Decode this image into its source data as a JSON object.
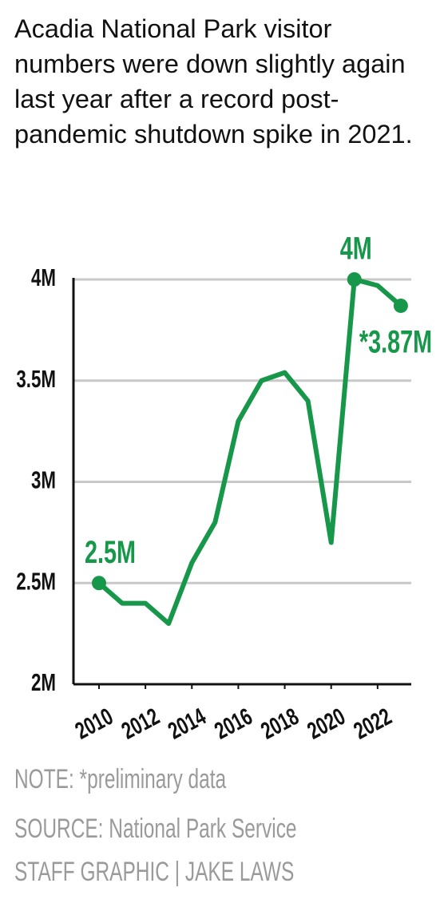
{
  "chart_data": {
    "type": "line",
    "title": "Acadia National Park visitor numbers were down slightly again last year after a record post-pandemic shutdown spike in 2021.",
    "x": [
      2010,
      2011,
      2012,
      2013,
      2014,
      2015,
      2016,
      2017,
      2018,
      2019,
      2020,
      2021,
      2022,
      2023
    ],
    "series": [
      {
        "name": "Visitors",
        "color": "#17974a",
        "values": [
          2.5,
          2.4,
          2.4,
          2.3,
          2.6,
          2.8,
          3.3,
          3.5,
          3.54,
          3.4,
          2.7,
          4.0,
          3.97,
          3.87
        ],
        "value_labels": [
          "2.5M",
          null,
          null,
          null,
          null,
          null,
          null,
          null,
          null,
          null,
          null,
          "4M",
          null,
          "*3.87M"
        ]
      }
    ],
    "xlim": [
      2008.9,
      2023.45
    ],
    "xticks": [
      2010,
      2012,
      2014,
      2016,
      2018,
      2020,
      2022
    ],
    "ylim": [
      2,
      4
    ],
    "yticks": [
      {
        "value": 2,
        "label": "2M"
      },
      {
        "value": 2.5,
        "label": "2.5M"
      },
      {
        "value": 3,
        "label": "3M"
      },
      {
        "value": 3.5,
        "label": "3.5M"
      },
      {
        "value": 4,
        "label": "4M"
      }
    ],
    "grid": true,
    "note": "NOTE: *preliminary data",
    "source": "SOURCE: National Park Service",
    "credit": "STAFF GRAPHIC | JAKE LAWS"
  }
}
